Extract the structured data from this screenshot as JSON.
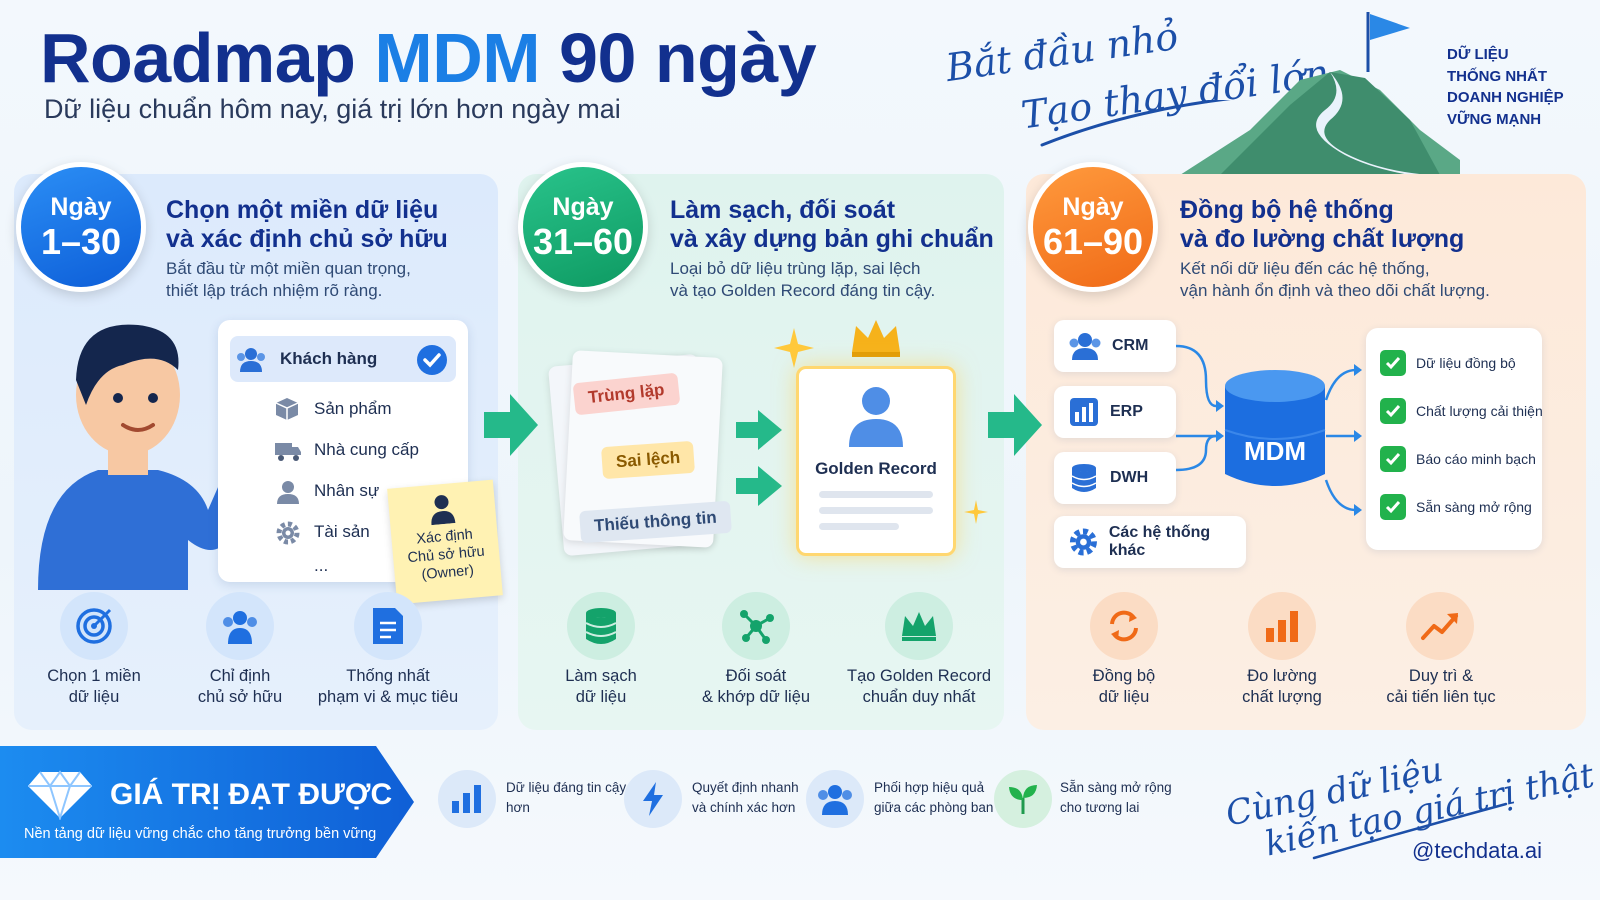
{
  "header": {
    "title_part1": "Roadmap",
    "title_part2": "MDM",
    "title_part3": "90 ngày",
    "subtitle": "Dữ liệu chuẩn hôm nay, giá trị lớn hơn ngày mai",
    "slogan_line1": "Bắt đầu nhỏ",
    "slogan_line2": "Tạo thay đổi lớn",
    "goal_lines": [
      "DỮ LIỆU",
      "THỐNG NHẤT",
      "DOANH NGHIỆP",
      "VỮNG MẠNH"
    ]
  },
  "phases": [
    {
      "badge_top": "Ngày",
      "badge_days": "1–30",
      "heading_line1": "Chọn một miền dữ liệu",
      "heading_line2": "và xác định chủ sở hữu",
      "desc_line1": "Bắt đầu từ một miền quan trọng,",
      "desc_line2": "thiết lập trách nhiệm rõ ràng.",
      "accent": "#1b7fe5",
      "domains": [
        "Khách hàng",
        "Sản phẩm",
        "Nhà cung cấp",
        "Nhân sự",
        "Tài sản",
        "..."
      ],
      "sticky_note": [
        "Xác định",
        "Chủ sở hữu",
        "(Owner)"
      ],
      "steps": [
        {
          "icon": "target-icon",
          "line1": "Chọn 1 miền",
          "line2": "dữ liệu"
        },
        {
          "icon": "people-icon",
          "line1": "Chỉ định",
          "line2": "chủ sở hữu"
        },
        {
          "icon": "document-icon",
          "line1": "Thống nhất",
          "line2": "phạm vi & mục tiêu"
        }
      ]
    },
    {
      "badge_top": "Ngày",
      "badge_days": "31–60",
      "heading_line1": "Làm sạch, đối soát",
      "heading_line2": "và xây dựng bản ghi chuẩn",
      "desc_line1": "Loại bỏ dữ liệu trùng lặp, sai lệch",
      "desc_line2": "và tạo Golden Record đáng tin cậy.",
      "accent": "#16a870",
      "issues": [
        "Trùng lặp",
        "Sai lệch",
        "Thiếu thông tin"
      ],
      "golden_record": "Golden Record",
      "steps": [
        {
          "icon": "database-icon",
          "line1": "Làm sạch",
          "line2": "dữ liệu"
        },
        {
          "icon": "network-icon",
          "line1": "Đối soát",
          "line2": "& khớp dữ liệu"
        },
        {
          "icon": "crown-icon",
          "line1": "Tạo Golden Record",
          "line2": "chuẩn duy nhất"
        }
      ]
    },
    {
      "badge_top": "Ngày",
      "badge_days": "61–90",
      "heading_line1": "Đồng bộ hệ thống",
      "heading_line2": "và đo lường chất lượng",
      "desc_line1": "Kết nối dữ liệu đến các hệ thống,",
      "desc_line2": "vận hành ổn định và theo dõi chất lượng.",
      "accent": "#f27320",
      "systems": [
        "CRM",
        "ERP",
        "DWH",
        "Các hệ thống khác"
      ],
      "hub": "MDM",
      "outcomes": [
        "Dữ liệu đồng bộ",
        "Chất lượng cải thiện",
        "Báo cáo minh bạch",
        "Sẵn sàng mở rộng"
      ],
      "steps": [
        {
          "icon": "sync-icon",
          "line1": "Đồng bộ",
          "line2": "dữ liệu"
        },
        {
          "icon": "bar-chart-icon",
          "line1": "Đo lường",
          "line2": "chất lượng"
        },
        {
          "icon": "trend-up-icon",
          "line1": "Duy trì &",
          "line2": "cải tiến liên tục"
        }
      ]
    }
  ],
  "value_bar": {
    "title": "GIÁ TRỊ ĐẠT ĐƯỢC",
    "subtitle": "Nền tảng dữ liệu vững chắc cho tăng trưởng bền vững",
    "benefits": [
      {
        "icon": "bar-chart-icon",
        "line1": "Dữ liệu đáng tin cậy",
        "line2": "hơn"
      },
      {
        "icon": "lightning-icon",
        "line1": "Quyết định nhanh",
        "line2": "và chính xác hơn"
      },
      {
        "icon": "team-icon",
        "line1": "Phối hợp hiệu quả",
        "line2": "giữa các phòng ban"
      },
      {
        "icon": "sprout-icon",
        "line1": "Sẵn sàng mở rộng",
        "line2": "cho tương lai"
      }
    ]
  },
  "footer": {
    "signature_line1": "Cùng dữ liệu",
    "signature_line2": "kiến tạo giá trị thật",
    "handle": "@techdata.ai"
  }
}
